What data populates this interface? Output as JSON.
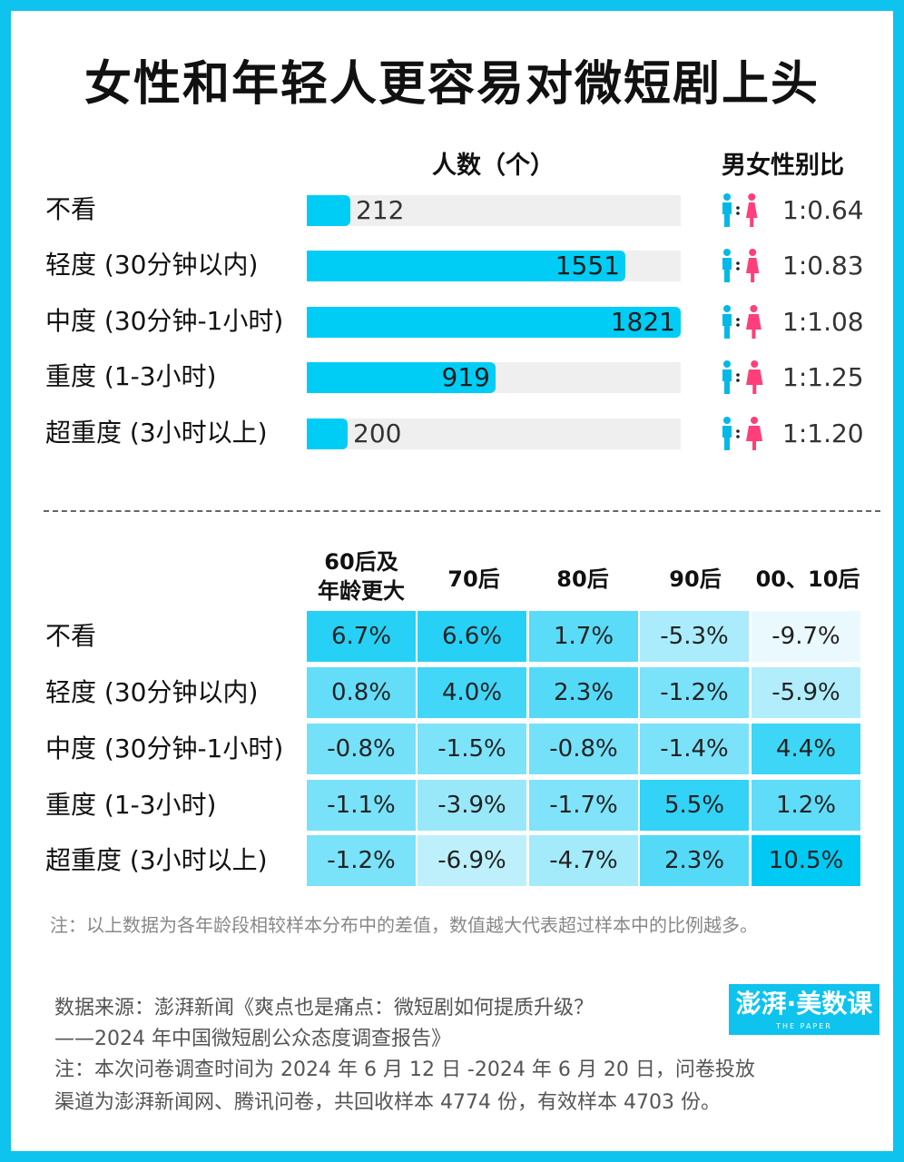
{
  "title": "女性和年轻人更容易对微短剧上头",
  "headers": {
    "count": "人数（个）",
    "ratio": "男女性别比"
  },
  "chart_data": [
    {
      "type": "bar",
      "orientation": "horizontal",
      "categories": [
        "不看",
        "轻度 (30分钟以内)",
        "中度 (30分钟-1小时)",
        "重度 (1-3小时)",
        "超重度 (3小时以上)"
      ],
      "values": [
        212,
        1551,
        1821,
        919,
        200
      ],
      "ylabel": "人数（个）",
      "xlim": [
        0,
        1821
      ],
      "bar_color": "#00cdf5",
      "track_color": "#efefef",
      "gender_ratio_label": "男女性别比",
      "gender_ratio": [
        "1:0.64",
        "1:0.83",
        "1:1.08",
        "1:1.25",
        "1:1.20"
      ],
      "female_share": [
        0.64,
        0.83,
        1.08,
        1.25,
        1.2
      ]
    },
    {
      "type": "heatmap",
      "columns": [
        "60后及\n年龄更大",
        "70后",
        "80后",
        "90后",
        "00、10后"
      ],
      "rows": [
        "不看",
        "轻度 (30分钟以内)",
        "中度 (30分钟-1小时)",
        "重度 (1-3小时)",
        "超重度 (3小时以上)"
      ],
      "values": [
        [
          6.7,
          6.6,
          1.7,
          -5.3,
          -9.7
        ],
        [
          0.8,
          4.0,
          2.3,
          -1.2,
          -5.9
        ],
        [
          -0.8,
          -1.5,
          -0.8,
          -1.4,
          4.4
        ],
        [
          -1.1,
          -3.9,
          -1.7,
          5.5,
          1.2
        ],
        [
          -1.2,
          -6.9,
          -4.7,
          2.3,
          10.5
        ]
      ],
      "labels": [
        [
          "6.7%",
          "6.6%",
          "1.7%",
          "-5.3%",
          "-9.7%"
        ],
        [
          "0.8%",
          "4.0%",
          "2.3%",
          "-1.2%",
          "-5.9%"
        ],
        [
          "-0.8%",
          "-1.5%",
          "-0.8%",
          "-1.4%",
          "4.4%"
        ],
        [
          "-1.1%",
          "-3.9%",
          "-1.7%",
          "5.5%",
          "1.2%"
        ],
        [
          "-1.2%",
          "-6.9%",
          "-4.7%",
          "2.3%",
          "10.5%"
        ]
      ],
      "color_low": "#eaf9fd",
      "color_high": "#00c9f4"
    }
  ],
  "note": "注：以上数据为各年龄段相较样本分布中的差值，数值越大代表超过样本中的比例越多。",
  "source": [
    "数据来源：澎湃新闻《爽点也是痛点：微短剧如何提质升级？",
    "——2024 年中国微短剧公众态度调查报告》",
    "注：本次问卷调查时间为 2024 年 6 月 12 日 -2024 年 6 月 20 日，问卷投放",
    "渠道为澎湃新闻网、腾讯问卷，共回收样本 4774 份，有效样本 4703 份。"
  ],
  "logo": {
    "main": "澎湃·美数课",
    "sub": "THE PAPER"
  },
  "colors": {
    "frame": "#0ec3ee",
    "male": "#00b9e6",
    "female": "#ff3f7a"
  },
  "icons": [
    "male-icon",
    "female-icon"
  ]
}
